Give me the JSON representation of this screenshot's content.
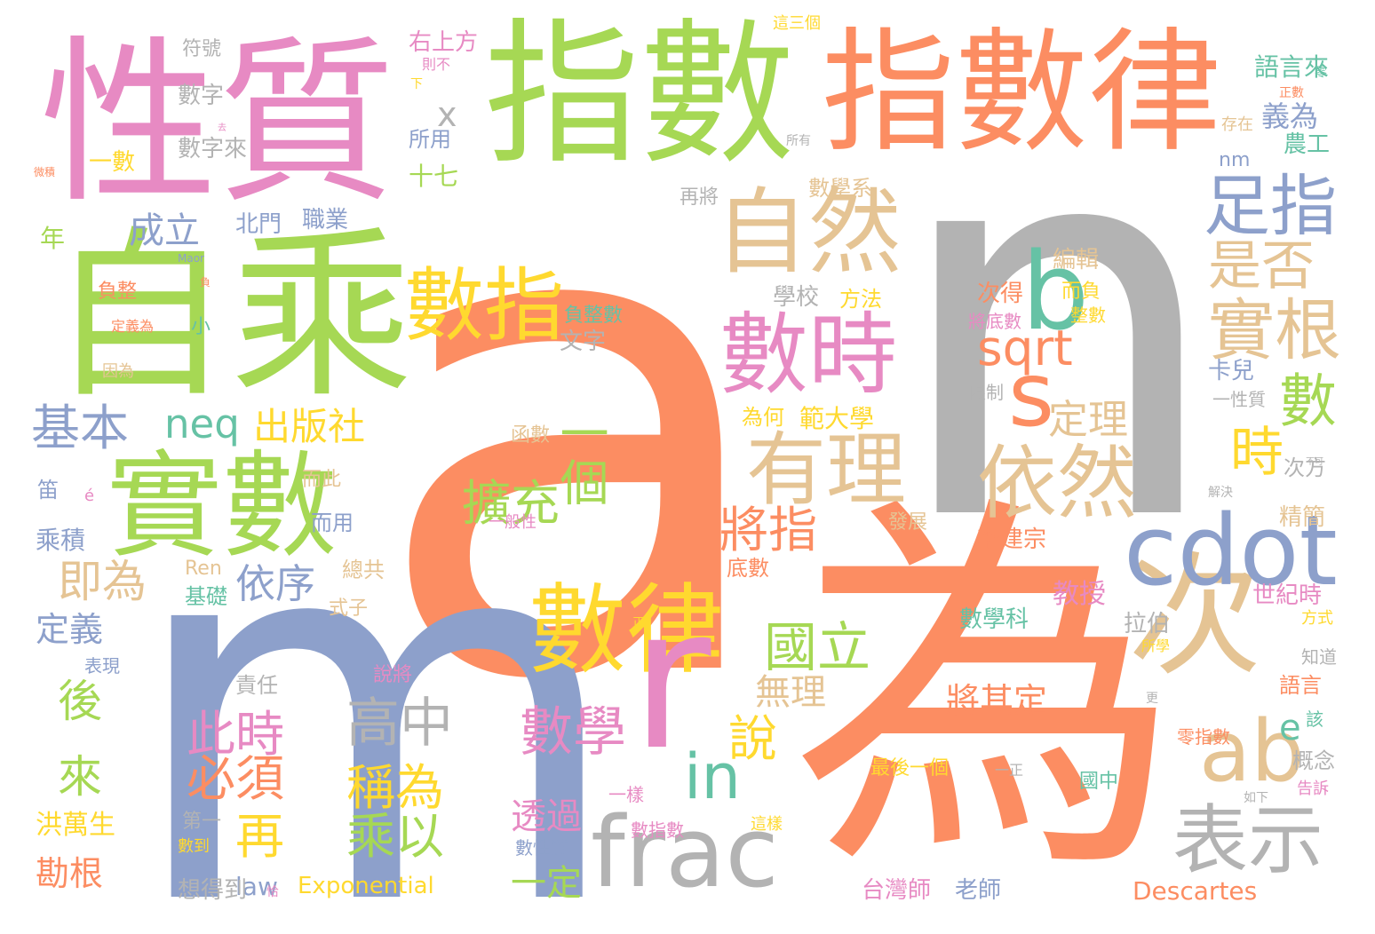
{
  "palette": {
    "orange": "#fc8d62",
    "gray": "#b3b3b3",
    "periwinkle": "#8da0cb",
    "pink": "#e78ac3",
    "green": "#a6d854",
    "yellow": "#ffd92f",
    "tan": "#e5c494",
    "teal": "#66c2a5"
  },
  "words": [
    {
      "text": "a",
      "color": "orange"
    },
    {
      "text": "n",
      "color": "gray"
    },
    {
      "text": "m",
      "color": "periwinkle"
    },
    {
      "text": "為",
      "color": "orange"
    },
    {
      "text": "指數",
      "color": "green"
    },
    {
      "text": "指數律",
      "color": "orange"
    },
    {
      "text": "性質",
      "color": "pink"
    },
    {
      "text": "自乘",
      "color": "green"
    },
    {
      "text": "實數",
      "color": "green"
    },
    {
      "text": "次",
      "color": "tan"
    },
    {
      "text": "數律",
      "color": "yellow"
    },
    {
      "text": "frac",
      "color": "gray"
    },
    {
      "text": "r",
      "color": "pink"
    },
    {
      "text": "cdot",
      "color": "periwinkle"
    },
    {
      "text": "自然",
      "color": "tan"
    },
    {
      "text": "數時",
      "color": "pink"
    },
    {
      "text": "數指",
      "color": "yellow"
    },
    {
      "text": "b",
      "color": "teal"
    },
    {
      "text": "s",
      "color": "orange"
    },
    {
      "text": "ab",
      "color": "tan"
    },
    {
      "text": "有理",
      "color": "tan"
    },
    {
      "text": "依然",
      "color": "tan"
    },
    {
      "text": "表示",
      "color": "gray"
    },
    {
      "text": "足指",
      "color": "periwinkle"
    },
    {
      "text": "實根",
      "color": "tan"
    },
    {
      "text": "是否",
      "color": "tan"
    },
    {
      "text": "數",
      "color": "green"
    },
    {
      "text": "時",
      "color": "yellow"
    },
    {
      "text": "sqrt",
      "color": "orange"
    },
    {
      "text": "國立",
      "color": "green"
    },
    {
      "text": "數學",
      "color": "pink"
    },
    {
      "text": "高中",
      "color": "gray"
    },
    {
      "text": "in",
      "color": "teal"
    },
    {
      "text": "將指",
      "color": "orange"
    },
    {
      "text": "擴充",
      "color": "green"
    },
    {
      "text": "一個",
      "color": "green"
    },
    {
      "text": "基本",
      "color": "periwinkle"
    },
    {
      "text": "neq",
      "color": "teal"
    },
    {
      "text": "出版社",
      "color": "yellow"
    },
    {
      "text": "定理",
      "color": "tan"
    },
    {
      "text": "此時",
      "color": "pink"
    },
    {
      "text": "必須",
      "color": "orange"
    },
    {
      "text": "稱為",
      "color": "yellow"
    },
    {
      "text": "乘以",
      "color": "green"
    },
    {
      "text": "再",
      "color": "yellow"
    },
    {
      "text": "說",
      "color": "yellow"
    },
    {
      "text": "即為",
      "color": "tan"
    },
    {
      "text": "後",
      "color": "green"
    },
    {
      "text": "來",
      "color": "green"
    },
    {
      "text": "依序",
      "color": "periwinkle"
    },
    {
      "text": "成立",
      "color": "periwinkle"
    },
    {
      "text": "無理",
      "color": "tan"
    },
    {
      "text": "將其定",
      "color": "orange"
    },
    {
      "text": "透過",
      "color": "pink"
    },
    {
      "text": "一定",
      "color": "green"
    },
    {
      "text": "e",
      "color": "teal"
    },
    {
      "text": "x",
      "color": "gray"
    },
    {
      "text": "義為",
      "color": "periwinkle"
    },
    {
      "text": "範大學",
      "color": "yellow"
    },
    {
      "text": "Exponential",
      "color": "yellow"
    },
    {
      "text": "Descartes",
      "color": "orange"
    },
    {
      "text": "law",
      "color": "periwinkle"
    },
    {
      "text": "勘根",
      "color": "orange"
    },
    {
      "text": "洪萬生",
      "color": "yellow"
    },
    {
      "text": "定義",
      "color": "periwinkle"
    },
    {
      "text": "乘積",
      "color": "periwinkle"
    },
    {
      "text": "右上方",
      "color": "pink"
    },
    {
      "text": "符號",
      "color": "gray"
    },
    {
      "text": "數字",
      "color": "gray"
    },
    {
      "text": "數字來",
      "color": "gray"
    },
    {
      "text": "一數",
      "color": "yellow"
    },
    {
      "text": "所用",
      "color": "periwinkle"
    },
    {
      "text": "十七",
      "color": "green"
    },
    {
      "text": "年",
      "color": "green"
    },
    {
      "text": "北門",
      "color": "periwinkle"
    },
    {
      "text": "職業",
      "color": "periwinkle"
    },
    {
      "text": "學校",
      "color": "gray"
    },
    {
      "text": "方法",
      "color": "yellow"
    },
    {
      "text": "數學系",
      "color": "tan"
    },
    {
      "text": "編輯",
      "color": "tan"
    },
    {
      "text": "次得",
      "color": "orange"
    },
    {
      "text": "卡兒",
      "color": "periwinkle"
    },
    {
      "text": "語言來",
      "color": "teal"
    },
    {
      "text": "農工",
      "color": "teal"
    },
    {
      "text": "nm",
      "color": "periwinkle"
    },
    {
      "text": "為何",
      "color": "yellow"
    },
    {
      "text": "李建宗",
      "color": "orange"
    },
    {
      "text": "教授",
      "color": "pink"
    },
    {
      "text": "數學科",
      "color": "teal"
    },
    {
      "text": "世紀時",
      "color": "pink"
    },
    {
      "text": "拉伯",
      "color": "gray"
    },
    {
      "text": "精簡",
      "color": "tan"
    },
    {
      "text": "次方",
      "color": "gray"
    },
    {
      "text": "台灣師",
      "color": "pink"
    },
    {
      "text": "老師",
      "color": "periwinkle"
    },
    {
      "text": "最後一個",
      "color": "yellow"
    },
    {
      "text": "想得到",
      "color": "gray"
    },
    {
      "text": "第一",
      "color": "gray"
    },
    {
      "text": "責任",
      "color": "gray"
    },
    {
      "text": "語言",
      "color": "orange"
    },
    {
      "text": "零指數",
      "color": "orange"
    },
    {
      "text": "概念",
      "color": "gray"
    },
    {
      "text": "國中",
      "color": "teal"
    },
    {
      "text": "函數",
      "color": "tan"
    },
    {
      "text": "文字",
      "color": "gray"
    },
    {
      "text": "負整數",
      "color": "teal"
    },
    {
      "text": "數指數",
      "color": "pink"
    },
    {
      "text": "數性質",
      "color": "periwinkle"
    },
    {
      "text": "基礎",
      "color": "teal"
    },
    {
      "text": "總共",
      "color": "tan"
    },
    {
      "text": "式子",
      "color": "tan"
    },
    {
      "text": "說將",
      "color": "pink"
    },
    {
      "text": "表現",
      "color": "periwinkle"
    },
    {
      "text": "發展",
      "color": "tan"
    },
    {
      "text": "底數",
      "color": "orange"
    },
    {
      "text": "Ren",
      "color": "tan"
    },
    {
      "text": "一性質",
      "color": "gray"
    },
    {
      "text": "限制",
      "color": "gray"
    },
    {
      "text": "而用",
      "color": "periwinkle"
    },
    {
      "text": "而此",
      "color": "tan"
    },
    {
      "text": "笛",
      "color": "periwinkle"
    },
    {
      "text": "小",
      "color": "teal"
    },
    {
      "text": "再將",
      "color": "gray"
    },
    {
      "text": "一般性",
      "color": "pink"
    },
    {
      "text": "負整",
      "color": "orange"
    },
    {
      "text": "因為",
      "color": "tan"
    },
    {
      "text": "定義為",
      "color": "orange"
    },
    {
      "text": "將底數",
      "color": "pink"
    },
    {
      "text": "整數",
      "color": "yellow"
    },
    {
      "text": "而負",
      "color": "yellow"
    },
    {
      "text": "正數",
      "color": "orange"
    },
    {
      "text": "零",
      "color": "teal"
    },
    {
      "text": "存在",
      "color": "tan"
    },
    {
      "text": "所有",
      "color": "gray"
    },
    {
      "text": "知道",
      "color": "gray"
    },
    {
      "text": "該",
      "color": "teal"
    },
    {
      "text": "告訴",
      "color": "pink"
    },
    {
      "text": "方式",
      "color": "yellow"
    },
    {
      "text": "所學",
      "color": "yellow"
    },
    {
      "text": "如下",
      "color": "gray"
    },
    {
      "text": "一樣",
      "color": "pink"
    },
    {
      "text": "這樣",
      "color": "yellow"
    },
    {
      "text": "一正",
      "color": "gray"
    },
    {
      "text": "數到",
      "color": "yellow"
    },
    {
      "text": "é",
      "color": "pink"
    },
    {
      "text": "這三個",
      "color": "yellow"
    },
    {
      "text": "則不",
      "color": "pink"
    },
    {
      "text": "下",
      "color": "yellow"
    },
    {
      "text": "更",
      "color": "gray"
    },
    {
      "text": "解決",
      "color": "gray"
    },
    {
      "text": "不可",
      "color": "gray"
    },
    {
      "text": "正",
      "color": "yellow"
    },
    {
      "text": "恰",
      "color": "pink"
    },
    {
      "text": "Maor",
      "color": "periwinkle"
    },
    {
      "text": "微積",
      "color": "orange"
    },
    {
      "text": "負",
      "color": "orange"
    },
    {
      "text": "去",
      "color": "pink"
    }
  ]
}
